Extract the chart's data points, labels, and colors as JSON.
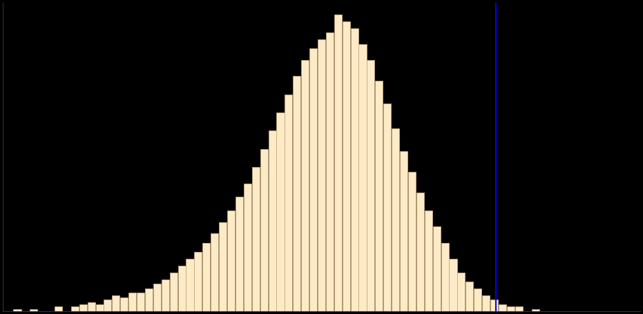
{
  "background_color": "#000000",
  "bar_color": "#FDEBC8",
  "bar_edge_color": "#C8A87A",
  "blue_line_color": "#0000FF",
  "bar_heights": [
    1,
    0,
    1,
    0,
    0,
    2,
    0,
    2,
    3,
    4,
    3,
    5,
    7,
    6,
    8,
    8,
    10,
    12,
    14,
    17,
    20,
    23,
    26,
    30,
    34,
    39,
    44,
    50,
    56,
    63,
    71,
    79,
    87,
    95,
    103,
    110,
    115,
    119,
    122,
    130,
    127,
    124,
    117,
    110,
    101,
    91,
    80,
    70,
    61,
    52,
    44,
    37,
    30,
    23,
    17,
    13,
    10,
    7,
    5,
    3,
    2,
    2,
    0,
    1
  ],
  "bin_start": 0.5,
  "bin_width": 0.016,
  "blue_line_x": 1.44,
  "xlim": [
    0.48,
    1.72
  ],
  "ylim": [
    0,
    135
  ],
  "figsize": [
    9.31,
    4.55
  ],
  "dpi": 100
}
